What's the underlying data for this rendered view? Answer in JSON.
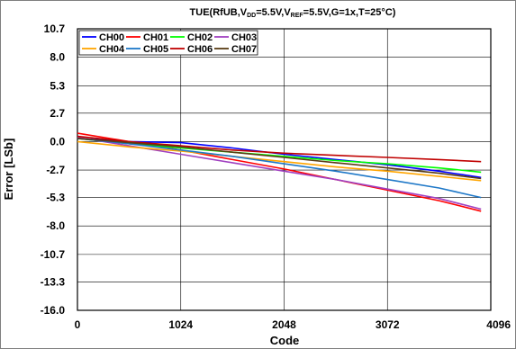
{
  "chart_data": {
    "type": "line",
    "title": {
      "prefix": "TUE(RfUB,V",
      "vdd_sub": "DD",
      "mid1": "=5.5V,V",
      "vref_sub": "REF",
      "suffix": "=5.5V,G=1x,T=25°C)"
    },
    "xlabel": "Code",
    "ylabel": "Error [LSb]",
    "xlim": [
      0,
      4096
    ],
    "ylim": [
      -16.0,
      10.7
    ],
    "xticks": [
      0,
      1024,
      2048,
      3072,
      4096
    ],
    "xtick_labels": [
      "0",
      "1024",
      "2048",
      "3072",
      "4096"
    ],
    "yticks": [
      10.7,
      8.0,
      5.3,
      2.7,
      0.0,
      -2.7,
      -5.3,
      -8.0,
      -10.7,
      -13.3,
      -16.0
    ],
    "ytick_labels": [
      "10.7",
      "8.0",
      "5.3",
      "2.7",
      "0.0",
      "-2.7",
      "-5.3",
      "-8.0",
      "-10.7",
      "-13.3",
      "-16.0"
    ],
    "grid": true,
    "legend_position": "top-left",
    "series": [
      {
        "name": "CH00",
        "color": "#0000ff",
        "x": [
          0,
          512,
          1024,
          1536,
          2048,
          2560,
          3072,
          3584,
          4000
        ],
        "y": [
          0.3,
          0.0,
          -0.1,
          -0.6,
          -1.2,
          -1.7,
          -2.2,
          -2.8,
          -3.4
        ]
      },
      {
        "name": "CH01",
        "color": "#ff0000",
        "x": [
          0,
          512,
          1024,
          1536,
          2048,
          2560,
          3072,
          3584,
          4000
        ],
        "y": [
          0.8,
          0.0,
          -0.8,
          -1.7,
          -2.6,
          -3.6,
          -4.6,
          -5.6,
          -6.6
        ]
      },
      {
        "name": "CH02",
        "color": "#00ff00",
        "x": [
          0,
          512,
          1024,
          1536,
          2048,
          2560,
          3072,
          3584,
          4000
        ],
        "y": [
          0.3,
          -0.2,
          -0.6,
          -1.0,
          -1.4,
          -1.8,
          -2.1,
          -2.5,
          -2.9
        ]
      },
      {
        "name": "CH03",
        "color": "#a040c0",
        "x": [
          0,
          512,
          1024,
          1536,
          2048,
          2560,
          3072,
          3584,
          4000
        ],
        "y": [
          0.4,
          -0.4,
          -1.2,
          -2.0,
          -2.8,
          -3.6,
          -4.5,
          -5.4,
          -6.4
        ]
      },
      {
        "name": "CH04",
        "color": "#ffa500",
        "x": [
          0,
          512,
          1024,
          1536,
          2048,
          2560,
          3072,
          3584,
          4000
        ],
        "y": [
          0.0,
          -0.5,
          -0.9,
          -1.4,
          -1.9,
          -2.4,
          -2.8,
          -3.3,
          -3.7
        ]
      },
      {
        "name": "CH05",
        "color": "#1e78c8",
        "x": [
          0,
          512,
          1024,
          1536,
          2048,
          2560,
          3072,
          3584,
          4000
        ],
        "y": [
          0.3,
          -0.2,
          -0.8,
          -1.4,
          -2.1,
          -2.8,
          -3.6,
          -4.4,
          -5.3
        ]
      },
      {
        "name": "CH06",
        "color": "#c00000",
        "x": [
          0,
          512,
          1024,
          1536,
          2048,
          2560,
          3072,
          3584,
          4000
        ],
        "y": [
          0.5,
          0.0,
          -0.4,
          -0.8,
          -1.1,
          -1.3,
          -1.5,
          -1.7,
          -1.9
        ]
      },
      {
        "name": "CH07",
        "color": "#5a3c14",
        "x": [
          0,
          512,
          1024,
          1536,
          2048,
          2560,
          3072,
          3584,
          4000
        ],
        "y": [
          0.3,
          -0.1,
          -0.5,
          -1.0,
          -1.5,
          -2.0,
          -2.5,
          -3.0,
          -3.5
        ]
      }
    ]
  }
}
